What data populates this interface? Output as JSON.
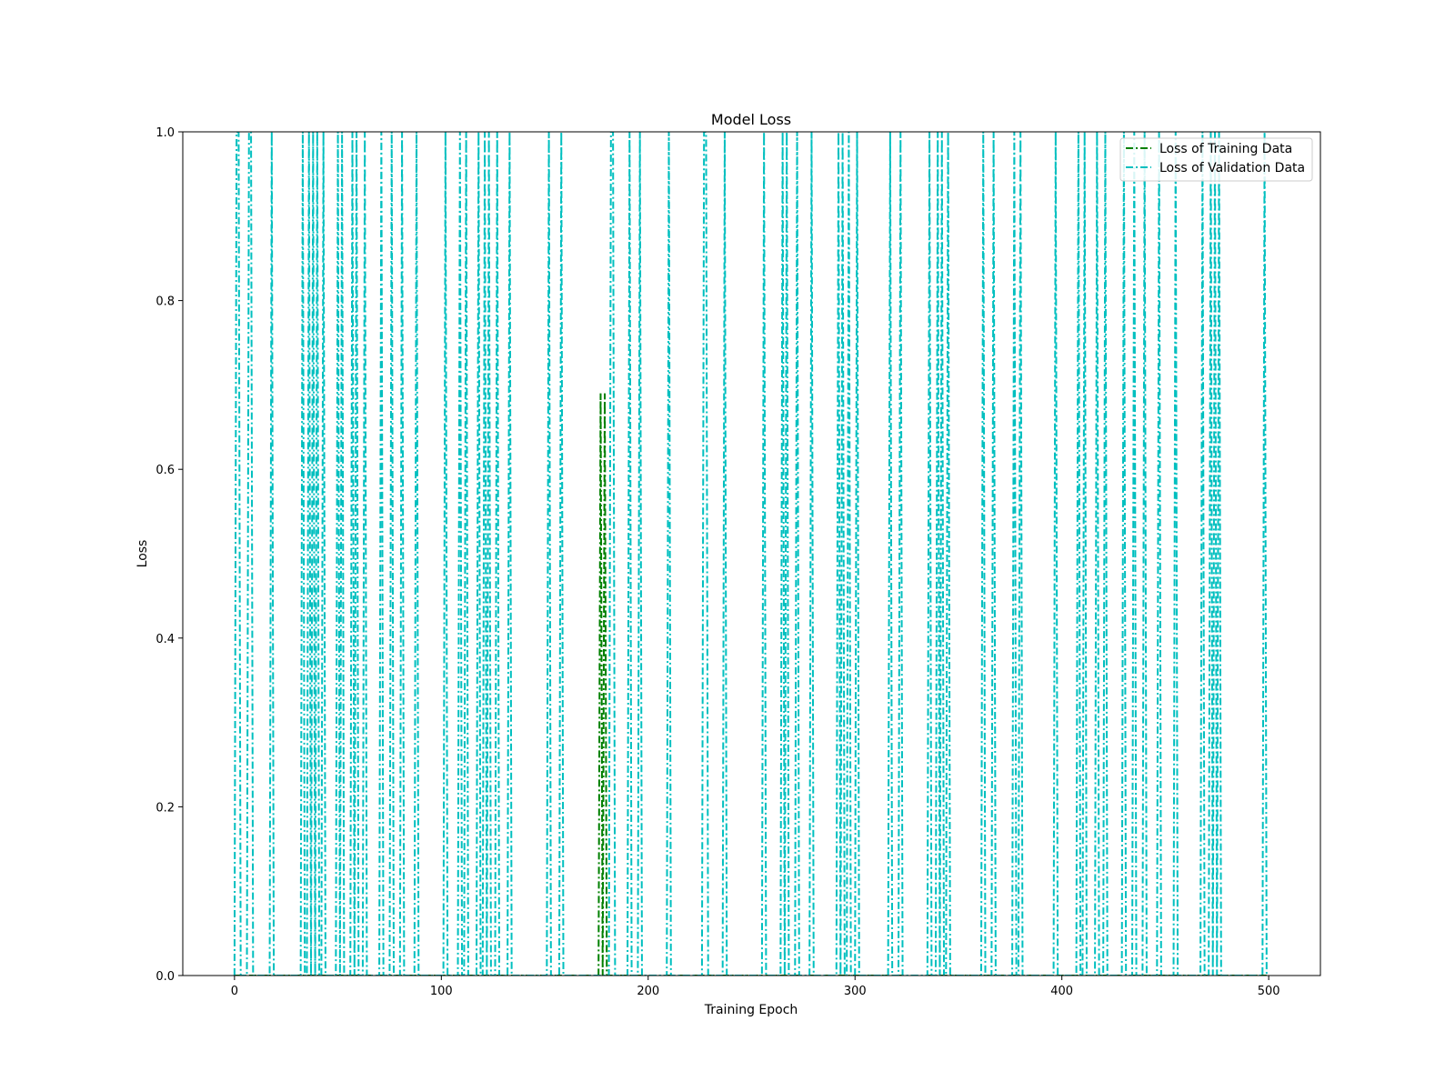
{
  "chart_data": {
    "type": "line",
    "title": "Model Loss",
    "xlabel": "Training Epoch",
    "ylabel": "Loss",
    "xlim": [
      -25,
      525
    ],
    "ylim": [
      0.0,
      1.0
    ],
    "xticks": [
      0,
      100,
      200,
      300,
      400,
      500
    ],
    "yticks": [
      0.0,
      0.2,
      0.4,
      0.6,
      0.8,
      1.0
    ],
    "ytick_labels": [
      "0.0",
      "0.2",
      "0.4",
      "0.6",
      "0.8",
      "1.0"
    ],
    "grid": false,
    "legend_position": "upper right",
    "epochs": 500,
    "series": [
      {
        "name": "Loss of Training Data",
        "color": "#008000",
        "linestyle": "dashdot",
        "baseline": 0.0,
        "spikes": [
          {
            "epoch": 177,
            "value": 0.69
          },
          {
            "epoch": 178,
            "value": 0.0
          },
          {
            "epoch": 179,
            "value": 0.69
          }
        ]
      },
      {
        "name": "Loss of Validation Data",
        "color": "#00bfbf",
        "linestyle": "dashdot",
        "baseline": 0.0,
        "spike_value": 1.0,
        "spike_epochs": [
          1,
          2,
          7,
          8,
          18,
          33,
          36,
          38,
          40,
          43,
          50,
          52,
          57,
          59,
          63,
          71,
          76,
          81,
          88,
          102,
          109,
          112,
          118,
          121,
          123,
          127,
          133,
          152,
          158,
          182,
          183,
          191,
          196,
          210,
          227,
          228,
          237,
          256,
          265,
          267,
          272,
          279,
          292,
          294,
          297,
          301,
          317,
          322,
          336,
          340,
          342,
          345,
          362,
          367,
          377,
          380,
          397,
          408,
          411,
          417,
          421,
          430,
          435,
          440,
          447,
          455,
          468,
          472,
          474,
          476,
          498
        ]
      }
    ]
  }
}
